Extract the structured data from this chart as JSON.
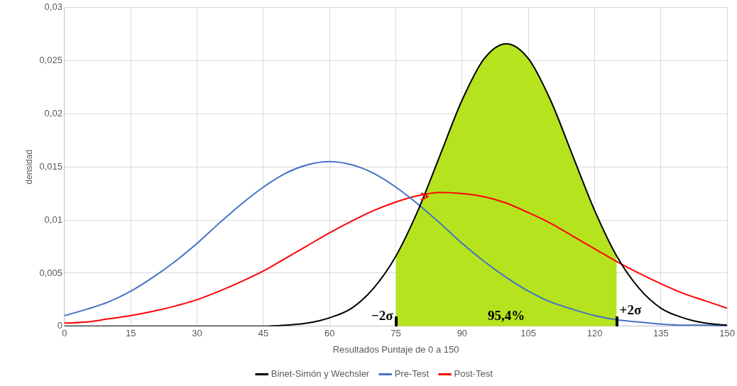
{
  "chart_data": {
    "type": "line",
    "xlabel": "Resultados Puntaje de 0 a 150",
    "ylabel": "densidad",
    "x": [
      0,
      5,
      10,
      15,
      20,
      25,
      30,
      35,
      40,
      45,
      50,
      55,
      60,
      65,
      70,
      75,
      80,
      85,
      90,
      95,
      100,
      105,
      110,
      115,
      120,
      125,
      130,
      135,
      140,
      145,
      150
    ],
    "series": [
      {
        "type": "area",
        "color": "#b5e31e",
        "x": [
          75,
          80,
          85,
          90,
          95,
          100,
          105,
          110,
          115,
          120,
          125
        ],
        "values": [
          0.0066,
          0.0109,
          0.0161,
          0.0213,
          0.0252,
          0.0266,
          0.0252,
          0.0213,
          0.0161,
          0.0109,
          0.0066
        ]
      },
      {
        "name": "Binet-Simón y Wechsler",
        "color": "#000000",
        "values": [
          0,
          0,
          0,
          0,
          0,
          0,
          0,
          0,
          0,
          0,
          0.0001,
          0.0003,
          0.0008,
          0.0017,
          0.0036,
          0.0066,
          0.0109,
          0.0161,
          0.0213,
          0.0252,
          0.0266,
          0.0252,
          0.0213,
          0.0161,
          0.0109,
          0.0066,
          0.0036,
          0.0017,
          0.0008,
          0.0003,
          0.0001
        ]
      },
      {
        "name": "Pre-Test",
        "color": "#4472c4",
        "values": [
          0.001,
          0.0016,
          0.0023,
          0.0033,
          0.0046,
          0.0061,
          0.0078,
          0.0097,
          0.0115,
          0.0131,
          0.0144,
          0.0152,
          0.0155,
          0.0152,
          0.0144,
          0.0131,
          0.0115,
          0.0097,
          0.0078,
          0.0061,
          0.0046,
          0.0033,
          0.0023,
          0.0016,
          0.001,
          0.0006,
          0.0004,
          0.0002,
          0.0001,
          0.0001,
          0
        ]
      },
      {
        "name": "Post-Test",
        "color": "#ff0000",
        "values": [
          0.0003,
          0.0004,
          0.0007,
          0.001,
          0.0014,
          0.0019,
          0.0025,
          0.0033,
          0.0042,
          0.0052,
          0.0064,
          0.0076,
          0.0088,
          0.0099,
          0.0109,
          0.0117,
          0.0123,
          0.0126,
          0.0125,
          0.0122,
          0.0116,
          0.0107,
          0.0097,
          0.0085,
          0.0073,
          0.0061,
          0.005,
          0.004,
          0.0031,
          0.0024,
          0.0017
        ]
      }
    ],
    "annotations": [
      {
        "text": "−2σ",
        "x": 75,
        "y": 0
      },
      "95,4%",
      {
        "text": "+2σ",
        "x": 125,
        "y": 0
      }
    ],
    "xlim": [
      0,
      150
    ],
    "xticks": [
      0,
      15,
      30,
      45,
      60,
      75,
      90,
      105,
      120,
      135,
      150
    ],
    "ylim": [
      0,
      0.03
    ],
    "yticks": [
      0,
      {
        "value": 0.005,
        "label": "0,005"
      },
      {
        "value": 0.01,
        "label": "0,01"
      },
      {
        "value": 0.015,
        "label": "0,015"
      },
      {
        "value": 0.02,
        "label": "0,02"
      },
      {
        "value": 0.025,
        "label": "0,025"
      },
      {
        "value": 0.03,
        "label": "0,03"
      }
    ],
    "grid": true,
    "legend": "bottom",
    "marker": "none",
    "line_style": "solid"
  }
}
